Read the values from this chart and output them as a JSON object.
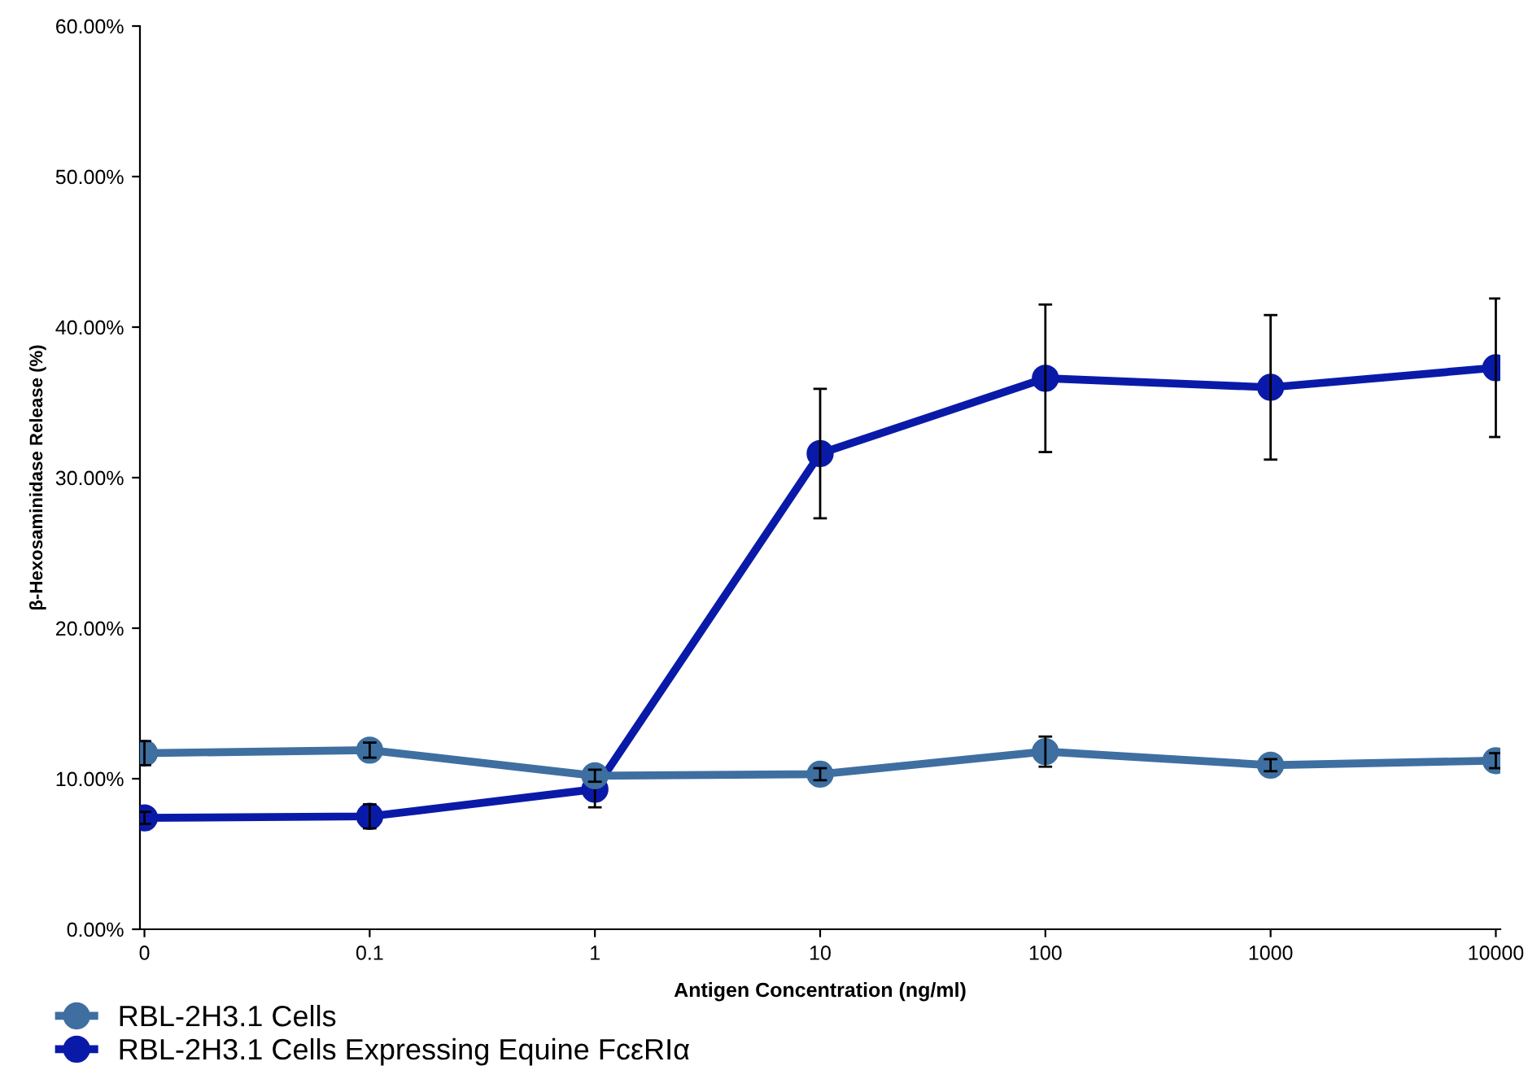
{
  "chart_data": {
    "type": "line",
    "xlabel": "Antigen Concentration (ng/ml)",
    "ylabel": "β-Hexosaminidase Release (%)",
    "categories": [
      "0",
      "0.1",
      "1",
      "10",
      "100",
      "1000",
      "10000"
    ],
    "series": [
      {
        "name": "RBL-2H3.1 Cells",
        "color": "#3e6fa0",
        "values": [
          11.7,
          11.9,
          10.2,
          10.3,
          11.8,
          10.9,
          11.2
        ],
        "errors": [
          0.8,
          0.5,
          0.4,
          0.4,
          1.0,
          0.4,
          0.5
        ]
      },
      {
        "name": "RBL-2H3.1 Cells Expressing Equine FcεRIα",
        "color": "#0a1aa8",
        "values": [
          7.4,
          7.5,
          9.3,
          31.6,
          36.6,
          36.0,
          37.3
        ],
        "errors": [
          0.4,
          0.8,
          1.2,
          4.3,
          4.9,
          4.8,
          4.6
        ]
      }
    ],
    "ylim": [
      0,
      60
    ],
    "yticks": [
      {
        "value": 0,
        "label": "0.00%"
      },
      {
        "value": 10,
        "label": "10.00%"
      },
      {
        "value": 20,
        "label": "20.00%"
      },
      {
        "value": 30,
        "label": "30.00%"
      },
      {
        "value": 40,
        "label": "40.00%"
      },
      {
        "value": 50,
        "label": "50.00%"
      },
      {
        "value": 60,
        "label": "60.00%"
      }
    ],
    "grid": false,
    "legend": "bottom left",
    "marker": "circle",
    "line_style": "solid"
  }
}
